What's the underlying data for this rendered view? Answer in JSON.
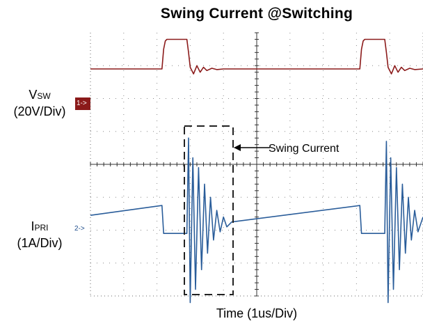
{
  "chart_data": {
    "type": "line",
    "title": "Swing Current @Switching",
    "xlabel": "Time (1us/Div)",
    "y_labels": {
      "ch1": {
        "main": "V",
        "sub": "SW",
        "scale": "(20V/Div)"
      },
      "ch2": {
        "main": "I",
        "sub": "PRI",
        "scale": "(1A/Div)"
      }
    },
    "channel_markers": {
      "ch1": "1->",
      "ch2": "2->"
    },
    "annotation": "Swing Current",
    "grid": true,
    "x_divisions": 10,
    "y_divisions": 8,
    "series": [
      {
        "name": "VSW",
        "color": "#8b1a1a",
        "points": [
          [
            0,
            2.9
          ],
          [
            2.15,
            2.9
          ],
          [
            2.2,
            3.5
          ],
          [
            2.25,
            3.75
          ],
          [
            2.3,
            3.8
          ],
          [
            2.9,
            3.8
          ],
          [
            2.95,
            3.4
          ],
          [
            3.0,
            2.95
          ],
          [
            3.1,
            2.75
          ],
          [
            3.2,
            3.0
          ],
          [
            3.3,
            2.8
          ],
          [
            3.4,
            2.95
          ],
          [
            3.5,
            2.85
          ],
          [
            3.65,
            2.92
          ],
          [
            3.8,
            2.88
          ],
          [
            4.0,
            2.9
          ],
          [
            8.1,
            2.9
          ],
          [
            8.15,
            3.5
          ],
          [
            8.2,
            3.75
          ],
          [
            8.25,
            3.8
          ],
          [
            8.85,
            3.8
          ],
          [
            8.9,
            3.4
          ],
          [
            8.95,
            2.95
          ],
          [
            9.05,
            2.75
          ],
          [
            9.15,
            3.0
          ],
          [
            9.25,
            2.8
          ],
          [
            9.35,
            2.95
          ],
          [
            9.45,
            2.85
          ],
          [
            9.6,
            2.92
          ],
          [
            9.75,
            2.88
          ],
          [
            10,
            2.9
          ]
        ]
      },
      {
        "name": "IPRI",
        "color": "#2a5d9a",
        "points": [
          [
            0,
            -1.55
          ],
          [
            2.15,
            -1.25
          ],
          [
            2.2,
            -2.1
          ],
          [
            2.9,
            -2.1
          ],
          [
            2.95,
            0.8
          ],
          [
            3.0,
            -4.2
          ],
          [
            3.08,
            0.2
          ],
          [
            3.16,
            -3.8
          ],
          [
            3.25,
            -0.1
          ],
          [
            3.34,
            -3.2
          ],
          [
            3.43,
            -0.6
          ],
          [
            3.52,
            -2.7
          ],
          [
            3.61,
            -1.0
          ],
          [
            3.7,
            -2.3
          ],
          [
            3.8,
            -1.4
          ],
          [
            3.9,
            -2.05
          ],
          [
            4.0,
            -1.6
          ],
          [
            4.1,
            -1.9
          ],
          [
            4.25,
            -1.75
          ],
          [
            8.1,
            -1.25
          ],
          [
            8.15,
            -2.1
          ],
          [
            8.85,
            -2.1
          ],
          [
            8.9,
            0.7
          ],
          [
            8.95,
            -4.2
          ],
          [
            9.03,
            0.2
          ],
          [
            9.11,
            -3.8
          ],
          [
            9.2,
            -0.1
          ],
          [
            9.29,
            -3.2
          ],
          [
            9.38,
            -0.6
          ],
          [
            9.47,
            -2.7
          ],
          [
            9.56,
            -1.0
          ],
          [
            9.65,
            -2.3
          ],
          [
            9.75,
            -1.4
          ],
          [
            9.85,
            -2.05
          ],
          [
            10,
            -1.6
          ]
        ]
      }
    ]
  }
}
